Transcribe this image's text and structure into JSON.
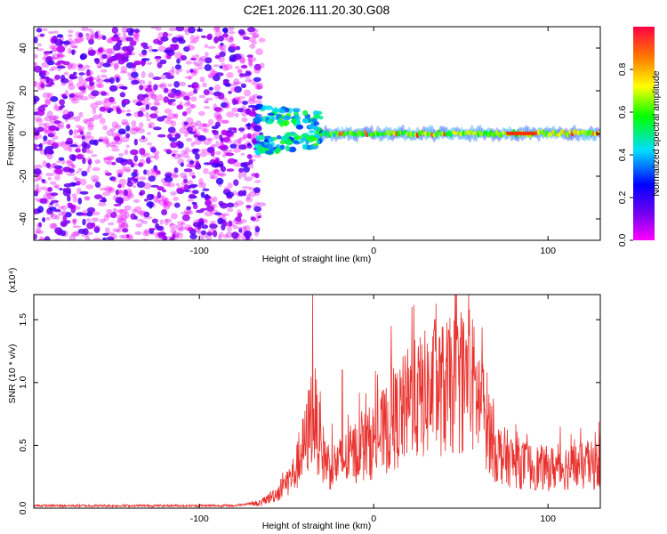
{
  "title": "C2E1.2026.111.20.30.G08",
  "colors": {
    "snr_line": "#e8322e",
    "axis": "#000000"
  },
  "colorbar": {
    "label": "Normalized spectral amplitude",
    "range": [
      0,
      1
    ],
    "ticks": [
      "0.0",
      "0.2",
      "0.4",
      "0.6",
      "0.8"
    ],
    "colormap": [
      "#ff00ff",
      "#7700ee",
      "#0000ff",
      "#00ddff",
      "#00ff00",
      "#ffff00",
      "#ff7700",
      "#ff0000"
    ]
  },
  "chart_data": [
    {
      "type": "heatmap",
      "title": "C2E1.2026.111.20.30.G08",
      "xlabel": "Height of straight line (km)",
      "ylabel": "Frequency (Hz)",
      "xlim": [
        -195,
        130
      ],
      "ylim": [
        -50,
        50
      ],
      "x_ticks": [
        "-100",
        "0",
        "100"
      ],
      "y_ticks": [
        "40",
        "20",
        "0",
        "-20",
        "-40"
      ],
      "x_tick_values": [
        -100,
        0,
        100
      ],
      "y_tick_values": [
        40,
        20,
        0,
        -20,
        -40
      ],
      "zlabel": "Normalized spectral amplitude",
      "zlim": [
        0,
        1
      ],
      "features": [
        {
          "x_range": [
            -195,
            -67
          ],
          "freq_range": [
            -50,
            50
          ],
          "amplitude_range": [
            0.0,
            0.25
          ],
          "description": "noise"
        },
        {
          "x_range": [
            -67,
            -30
          ],
          "freq_range": [
            -12,
            15
          ],
          "amplitude_range": [
            0.3,
            0.6
          ]
        },
        {
          "x_range": [
            -30,
            130
          ],
          "freq": 0,
          "freq_halfwidth": 3,
          "amplitude_range": [
            0.45,
            0.95
          ]
        }
      ]
    },
    {
      "type": "line",
      "xlabel": "Height of straight line (km)",
      "ylabel": "SNR (10 * v/v)",
      "y_multiplier": "(x10⁴)",
      "xlim": [
        -195,
        130
      ],
      "ylim": [
        0,
        1.7
      ],
      "x_ticks": [
        "-100",
        "0",
        "100"
      ],
      "y_ticks": [
        "0.0",
        "0.5",
        "1.0",
        "1.5"
      ],
      "x_tick_values": [
        -100,
        0,
        100
      ],
      "y_tick_values": [
        0,
        0.5,
        1.0,
        1.5
      ],
      "series": [
        {
          "x": [
            -195,
            -80,
            -65,
            -55,
            -45,
            -38,
            -35,
            -30,
            -25,
            -18,
            -10,
            0,
            10,
            20,
            30,
            40,
            50,
            55,
            60,
            65,
            70,
            80,
            90,
            100,
            110,
            120,
            130
          ],
          "y": [
            0.02,
            0.02,
            0.05,
            0.15,
            0.35,
            0.7,
            1.0,
            0.55,
            0.4,
            0.45,
            0.55,
            0.65,
            0.8,
            1.0,
            1.1,
            1.15,
            1.2,
            1.25,
            1.05,
            0.85,
            0.55,
            0.45,
            0.4,
            0.38,
            0.4,
            0.4,
            0.42
          ],
          "peaks": [
            [
              -35,
              1.72
            ],
            [
              -18,
              1.1
            ],
            [
              10,
              1.45
            ],
            [
              22,
              1.6
            ],
            [
              35,
              1.5
            ],
            [
              55,
              1.58
            ]
          ]
        }
      ]
    }
  ]
}
